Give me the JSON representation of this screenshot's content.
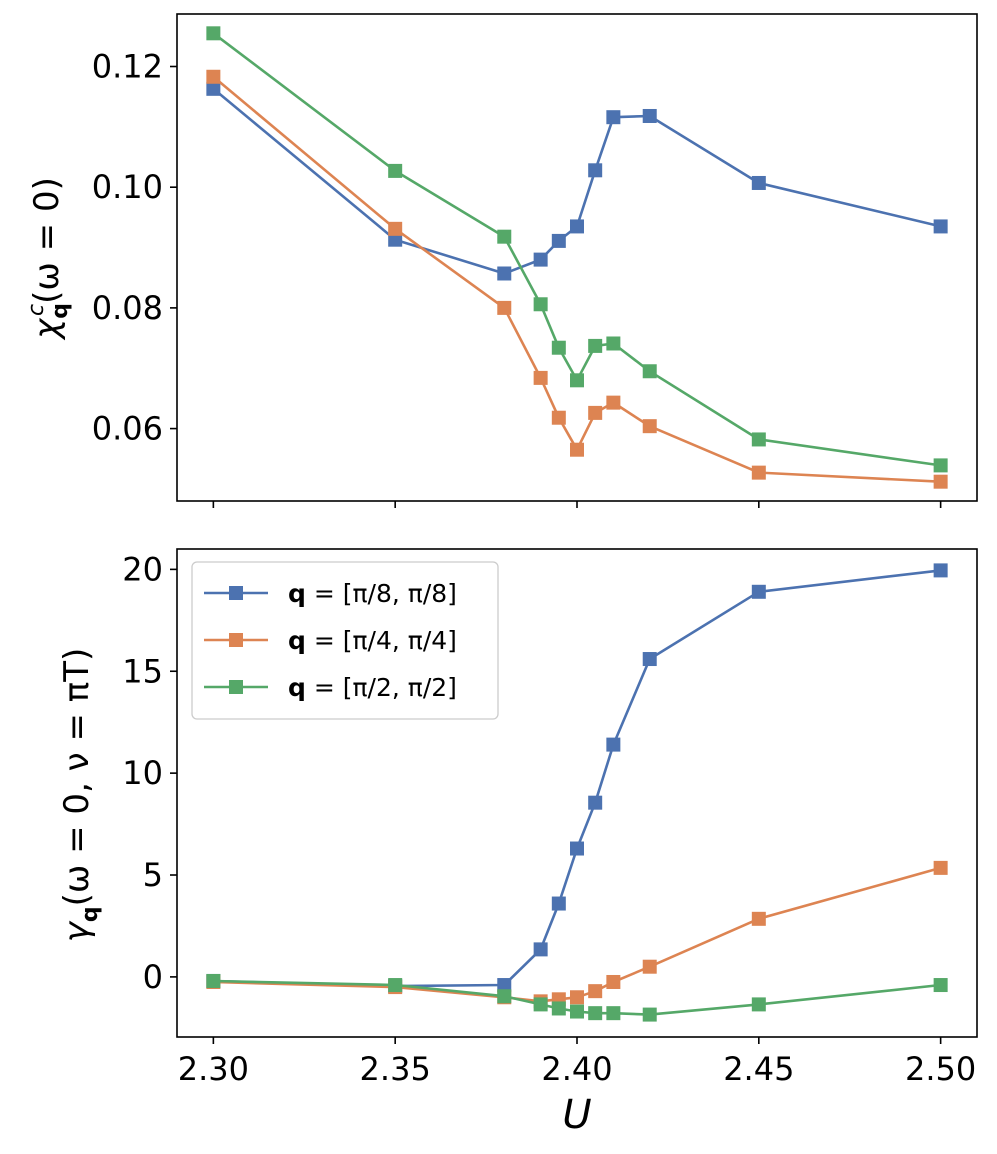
{
  "colors": {
    "q8": "#4c72b0",
    "q4": "#dd8452",
    "q2": "#55a868"
  },
  "chart_data": [
    {
      "type": "line",
      "panel": "top",
      "ylabel_parts": [
        "χ",
        "q",
        "c",
        "(ω = 0)"
      ],
      "xlim": [
        2.29,
        2.51
      ],
      "ylim": [
        0.048,
        0.1287
      ],
      "yticks": [
        0.06,
        0.08,
        0.1,
        0.12
      ],
      "ytick_labels": [
        "0.06",
        "0.08",
        "0.10",
        "0.12"
      ],
      "x": [
        2.3,
        2.35,
        2.38,
        2.39,
        2.395,
        2.4,
        2.405,
        2.41,
        2.42,
        2.45,
        2.5
      ],
      "series": [
        {
          "key": "q8",
          "color": "#4c72b0",
          "values": [
            0.1163,
            0.0913,
            0.0857,
            0.088,
            0.0911,
            0.0935,
            0.1028,
            0.1116,
            0.1118,
            0.1007,
            0.0935
          ]
        },
        {
          "key": "q4",
          "color": "#dd8452",
          "values": [
            0.1183,
            0.0931,
            0.08,
            0.0684,
            0.0618,
            0.0565,
            0.0626,
            0.0643,
            0.0604,
            0.0527,
            0.0512
          ]
        },
        {
          "key": "q2",
          "color": "#55a868",
          "values": [
            0.1255,
            0.1027,
            0.0918,
            0.0806,
            0.0734,
            0.068,
            0.0737,
            0.0741,
            0.0695,
            0.0582,
            0.0539
          ]
        }
      ]
    },
    {
      "type": "line",
      "panel": "bottom",
      "ylabel_parts": [
        "γ",
        "q",
        "(ω = 0, ν = πT)"
      ],
      "xlabel": "U",
      "xlim": [
        2.29,
        2.51
      ],
      "xticks": [
        2.3,
        2.35,
        2.4,
        2.45,
        2.5
      ],
      "xtick_labels": [
        "2.30",
        "2.35",
        "2.40",
        "2.45",
        "2.50"
      ],
      "ylim": [
        -2.95,
        21.0
      ],
      "yticks": [
        0,
        5,
        10,
        15,
        20
      ],
      "ytick_labels": [
        "0",
        "5",
        "10",
        "15",
        "20"
      ],
      "x": [
        2.3,
        2.35,
        2.38,
        2.39,
        2.395,
        2.4,
        2.405,
        2.41,
        2.42,
        2.45,
        2.5
      ],
      "series": [
        {
          "key": "q8",
          "color": "#4c72b0",
          "values": [
            -0.2,
            -0.45,
            -0.4,
            1.35,
            3.6,
            6.3,
            8.55,
            11.4,
            15.6,
            18.9,
            19.95
          ]
        },
        {
          "key": "q4",
          "color": "#dd8452",
          "values": [
            -0.25,
            -0.5,
            -1.0,
            -1.2,
            -1.1,
            -1.0,
            -0.7,
            -0.25,
            0.5,
            2.85,
            5.35
          ]
        },
        {
          "key": "q2",
          "color": "#55a868",
          "values": [
            -0.2,
            -0.4,
            -0.95,
            -1.35,
            -1.55,
            -1.7,
            -1.78,
            -1.78,
            -1.85,
            -1.35,
            -0.4
          ]
        }
      ],
      "legend": {
        "placement": "upper-left",
        "entries": [
          {
            "key": "q8",
            "bold": "q",
            "text": " = [π/8, π/8]"
          },
          {
            "key": "q4",
            "bold": "q",
            "text": " = [π/4, π/4]"
          },
          {
            "key": "q2",
            "bold": "q",
            "text": " = [π/2, π/2]"
          }
        ]
      }
    }
  ]
}
